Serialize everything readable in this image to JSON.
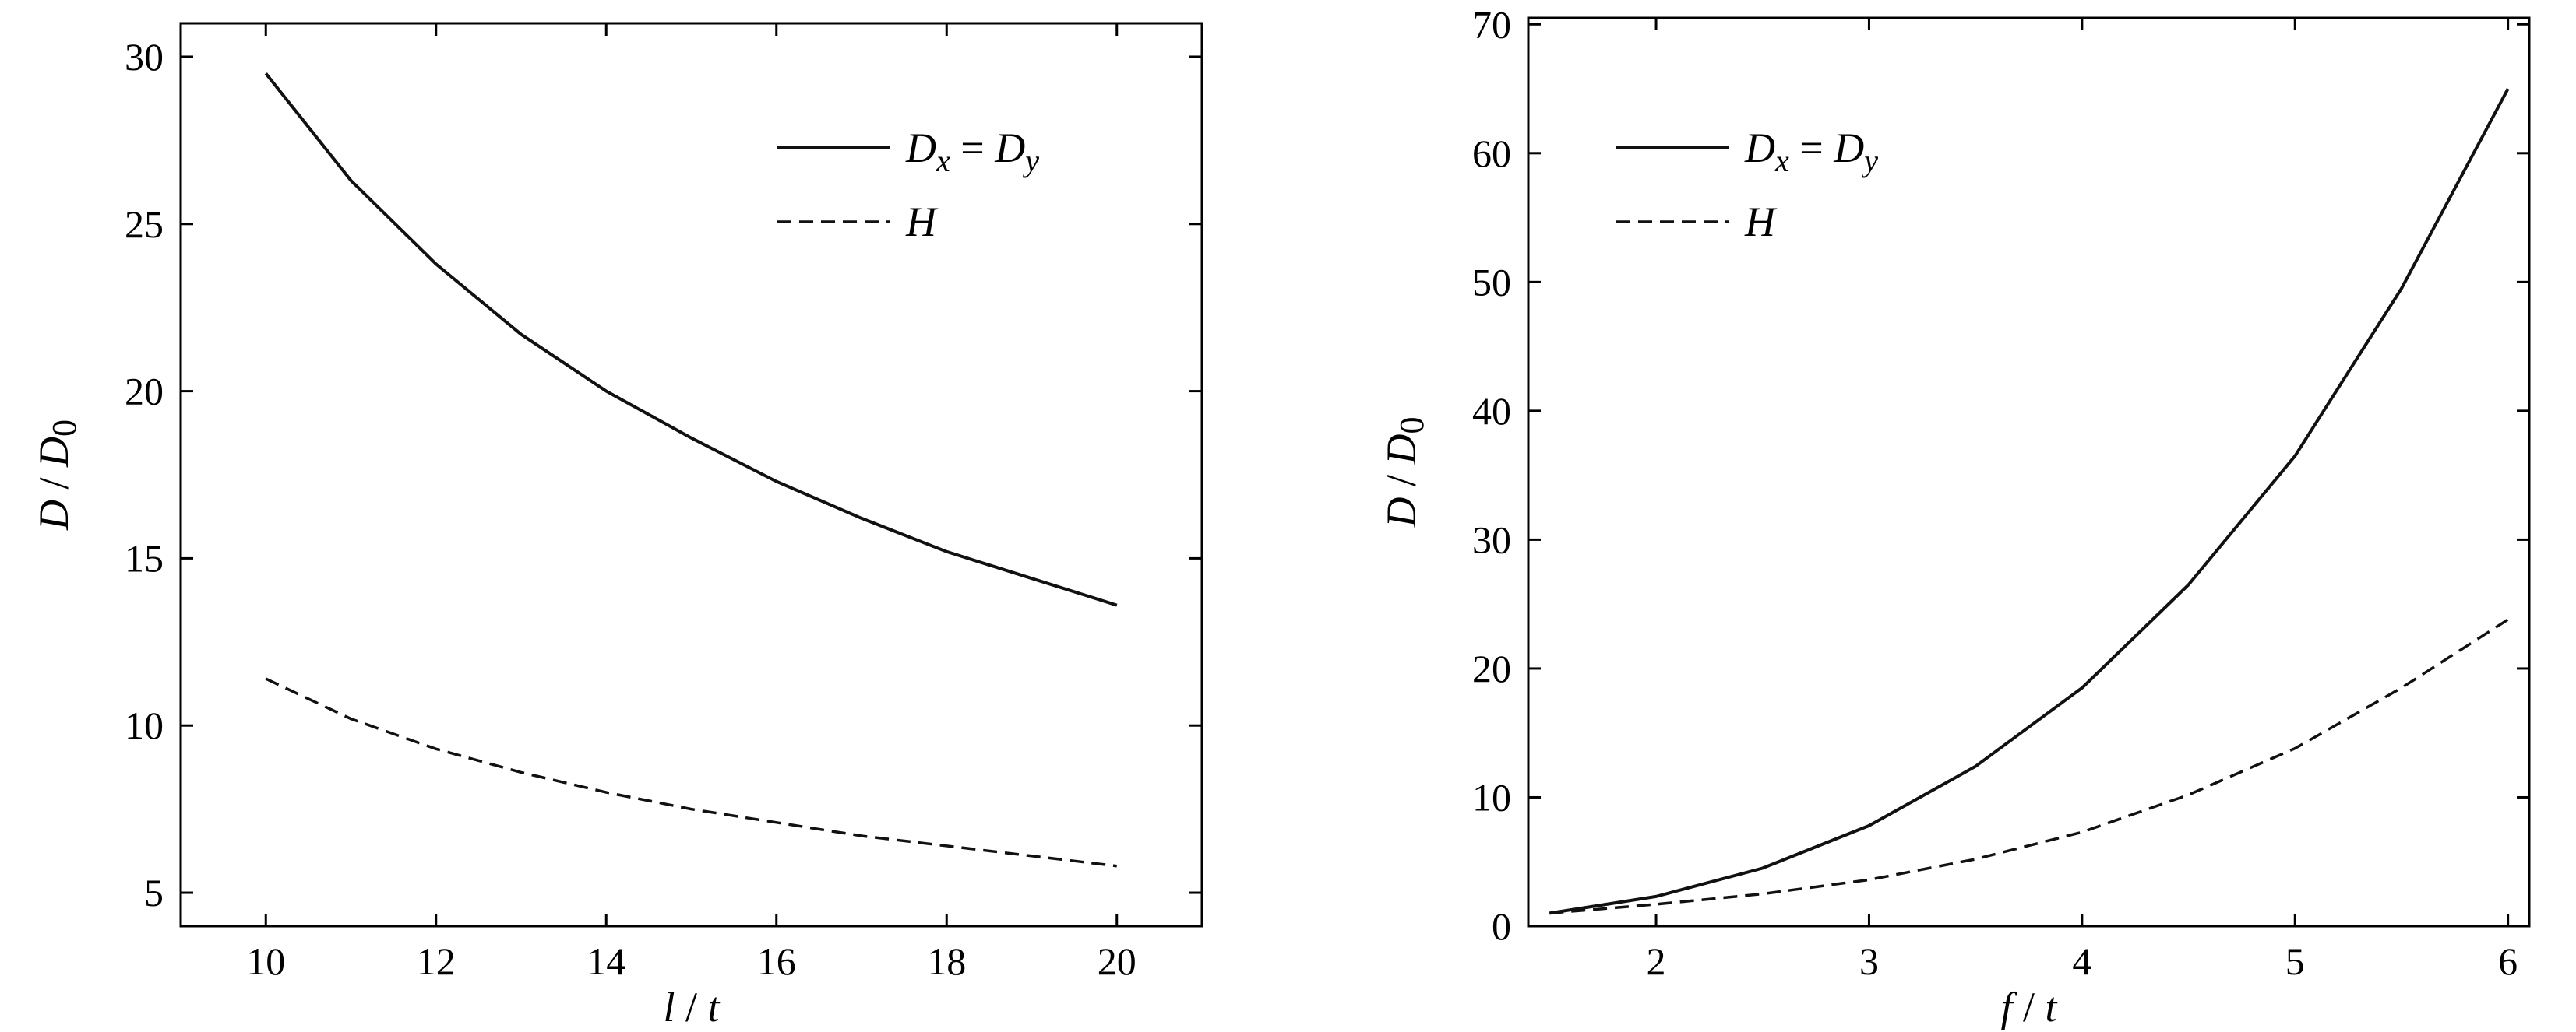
{
  "chart_data": [
    {
      "type": "line",
      "x": [
        10,
        11,
        12,
        13,
        14,
        15,
        16,
        17,
        18,
        19,
        20
      ],
      "xlabel": "l / t",
      "ylabel": "D / D0",
      "xlim": [
        9,
        21
      ],
      "ylim": [
        4,
        31
      ],
      "xticks": [
        10,
        12,
        14,
        16,
        18,
        20
      ],
      "yticks": [
        5,
        10,
        15,
        20,
        25,
        30
      ],
      "legend_position": "top-right",
      "grid": false,
      "series": [
        {
          "name": "Dx = Dy",
          "name_parts": {
            "main1": "D",
            "sub1": "x",
            "eq": "=",
            "main2": "D",
            "sub2": "y"
          },
          "style": "solid",
          "values": [
            29.5,
            26.3,
            23.8,
            21.7,
            20.0,
            18.6,
            17.3,
            16.2,
            15.2,
            14.4,
            13.6
          ]
        },
        {
          "name": "H",
          "style": "dashed",
          "values": [
            11.4,
            10.2,
            9.3,
            8.6,
            8.0,
            7.5,
            7.1,
            6.7,
            6.4,
            6.1,
            5.8
          ]
        }
      ]
    },
    {
      "type": "line",
      "x": [
        1.5,
        2,
        2.5,
        3,
        3.5,
        4,
        4.5,
        5,
        5.5,
        6
      ],
      "xlabel": "f / t",
      "ylabel": "D / D0",
      "xlim": [
        1.4,
        6.1
      ],
      "ylim": [
        0,
        70.5
      ],
      "xticks": [
        2,
        3,
        4,
        5,
        6
      ],
      "yticks": [
        0,
        10,
        20,
        30,
        40,
        50,
        60,
        70
      ],
      "legend_position": "top-left",
      "grid": false,
      "series": [
        {
          "name": "Dx = Dy",
          "name_parts": {
            "main1": "D",
            "sub1": "x",
            "eq": "=",
            "main2": "D",
            "sub2": "y"
          },
          "style": "solid",
          "values": [
            1.0,
            2.3,
            4.5,
            7.8,
            12.4,
            18.5,
            26.5,
            36.5,
            49.5,
            65.0
          ]
        },
        {
          "name": "H",
          "style": "dashed",
          "values": [
            1.0,
            1.7,
            2.5,
            3.6,
            5.2,
            7.3,
            10.2,
            13.8,
            18.5,
            23.8
          ]
        }
      ]
    }
  ]
}
